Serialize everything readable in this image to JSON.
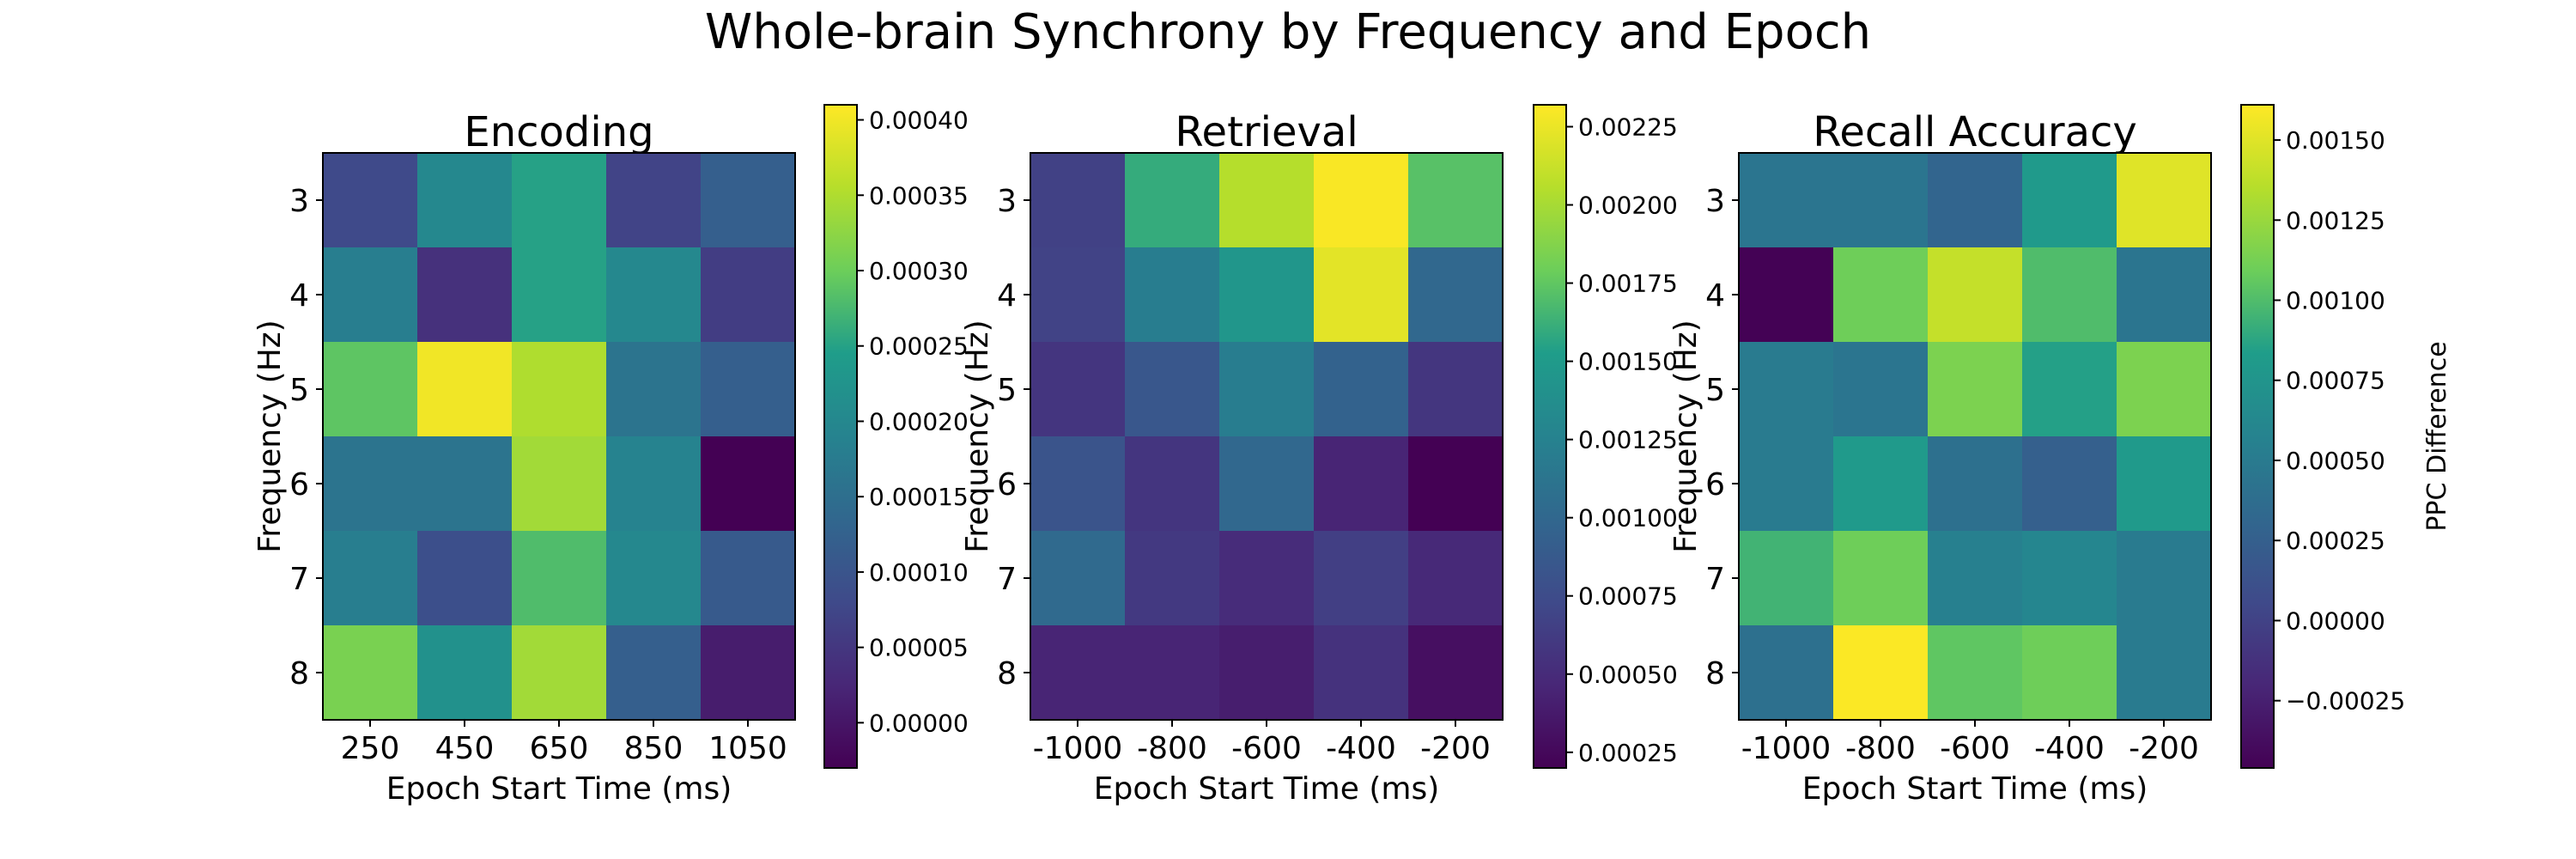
{
  "figure": {
    "title": "Whole-brain Synchrony by Frequency and Epoch"
  },
  "colors": {
    "colormap": [
      "#440154",
      "#482777",
      "#3f4a8a",
      "#31678e",
      "#26838f",
      "#1f9d8a",
      "#6cce5a",
      "#b6de2b",
      "#fee825"
    ]
  },
  "chart_data": [
    {
      "type": "heatmap",
      "title": "Encoding",
      "xlabel": "Epoch Start Time (ms)",
      "ylabel": "Frequency (Hz)",
      "x": [
        "250",
        "450",
        "650",
        "850",
        "1050"
      ],
      "y": [
        "3",
        "4",
        "5",
        "6",
        "7",
        "8"
      ],
      "values": [
        [
          8e-05,
          0.0002,
          0.00025,
          7e-05,
          0.00012
        ],
        [
          0.00018,
          4e-05,
          0.00025,
          0.0002,
          6e-05
        ],
        [
          0.00029,
          0.0004,
          0.00035,
          0.00016,
          0.00012
        ],
        [
          0.00016,
          0.00016,
          0.00034,
          0.00019,
          -3e-05
        ],
        [
          0.00018,
          9e-05,
          0.00028,
          0.0002,
          0.00011
        ],
        [
          0.00031,
          0.00022,
          0.00034,
          0.00012,
          1e-05
        ]
      ],
      "vmin": -3e-05,
      "vmax": 0.00041,
      "colorbar": {
        "ticks": [
          "0.00000",
          "0.00005",
          "0.00010",
          "0.00015",
          "0.00020",
          "0.00025",
          "0.00030",
          "0.00035",
          "0.00040"
        ],
        "values": [
          0,
          5e-05,
          0.0001,
          0.00015,
          0.0002,
          0.00025,
          0.0003,
          0.00035,
          0.0004
        ],
        "label": ""
      }
    },
    {
      "type": "heatmap",
      "title": "Retrieval",
      "xlabel": "Epoch Start Time (ms)",
      "ylabel": "Frequency (Hz)",
      "x": [
        "-1000",
        "-800",
        "-600",
        "-400",
        "-200"
      ],
      "y": [
        "3",
        "4",
        "5",
        "6",
        "7",
        "8"
      ],
      "values": [
        [
          0.00066,
          0.0016,
          0.00205,
          0.0023,
          0.00172
        ],
        [
          0.00068,
          0.0012,
          0.00145,
          0.00222,
          0.001
        ],
        [
          0.00057,
          0.00085,
          0.0012,
          0.00095,
          0.00058
        ],
        [
          0.00082,
          0.00057,
          0.001,
          0.00045,
          0.0002
        ],
        [
          0.00102,
          0.0006,
          0.0005,
          0.00065,
          0.00048
        ],
        [
          0.00045,
          0.00045,
          0.0004,
          0.00055,
          0.0003
        ]
      ],
      "vmin": 0.0002,
      "vmax": 0.00232,
      "colorbar": {
        "ticks": [
          "0.00025",
          "0.00050",
          "0.00075",
          "0.00100",
          "0.00125",
          "0.00150",
          "0.00175",
          "0.00200",
          "0.00225"
        ],
        "values": [
          0.00025,
          0.0005,
          0.00075,
          0.001,
          0.00125,
          0.0015,
          0.00175,
          0.002,
          0.00225
        ],
        "label": ""
      }
    },
    {
      "type": "heatmap",
      "title": "Recall Accuracy",
      "xlabel": "Epoch Start Time (ms)",
      "ylabel": "Frequency (Hz)",
      "x": [
        "-1000",
        "-800",
        "-600",
        "-400",
        "-200"
      ],
      "y": [
        "3",
        "4",
        "5",
        "6",
        "7",
        "8"
      ],
      "values": [
        [
          0.00045,
          0.00045,
          0.0003,
          0.0008,
          0.0015
        ],
        [
          -0.00045,
          0.0011,
          0.0014,
          0.001,
          0.00045
        ],
        [
          0.0005,
          0.00045,
          0.00115,
          0.00085,
          0.00115
        ],
        [
          0.0005,
          0.0008,
          0.0004,
          0.00025,
          0.0008
        ],
        [
          0.00095,
          0.0011,
          0.00055,
          0.0006,
          0.0005
        ],
        [
          0.0004,
          0.0016,
          0.00105,
          0.0011,
          0.0005
        ]
      ],
      "vmin": -0.00046,
      "vmax": 0.00161,
      "colorbar": {
        "ticks": [
          "−0.00025",
          "0.00000",
          "0.00025",
          "0.00050",
          "0.00075",
          "0.00100",
          "0.00125",
          "0.00150"
        ],
        "values": [
          -0.00025,
          0,
          0.00025,
          0.0005,
          0.00075,
          0.001,
          0.00125,
          0.0015
        ],
        "label": "PPC Difference"
      }
    }
  ]
}
